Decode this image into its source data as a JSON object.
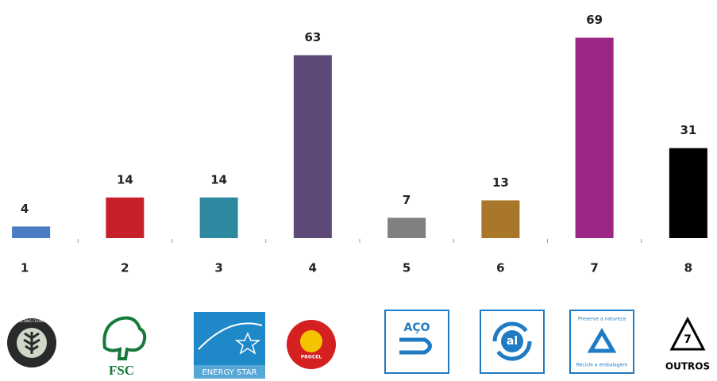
{
  "chart_data": {
    "type": "bar",
    "categories": [
      "1",
      "2",
      "3",
      "4",
      "5",
      "6",
      "7",
      "8"
    ],
    "values": [
      4,
      14,
      14,
      63,
      7,
      13,
      69,
      31
    ],
    "colors": [
      "#4a7cc4",
      "#c8202a",
      "#2e88a0",
      "#5e4a78",
      "#808080",
      "#a8772a",
      "#9a2784",
      "#000000"
    ],
    "ylim": [
      0,
      82
    ]
  },
  "logos": [
    [
      "GREEN BUILDING COUNCIL BRASIL"
    ],
    [
      "FSC"
    ],
    [
      "ENERGY STAR"
    ],
    [
      "PROCEL"
    ],
    [
      "AÇO"
    ],
    [
      "al"
    ],
    [
      "Preserve a natureza",
      "Recicle a embalagem"
    ],
    [
      "7",
      "OUTROS"
    ]
  ]
}
